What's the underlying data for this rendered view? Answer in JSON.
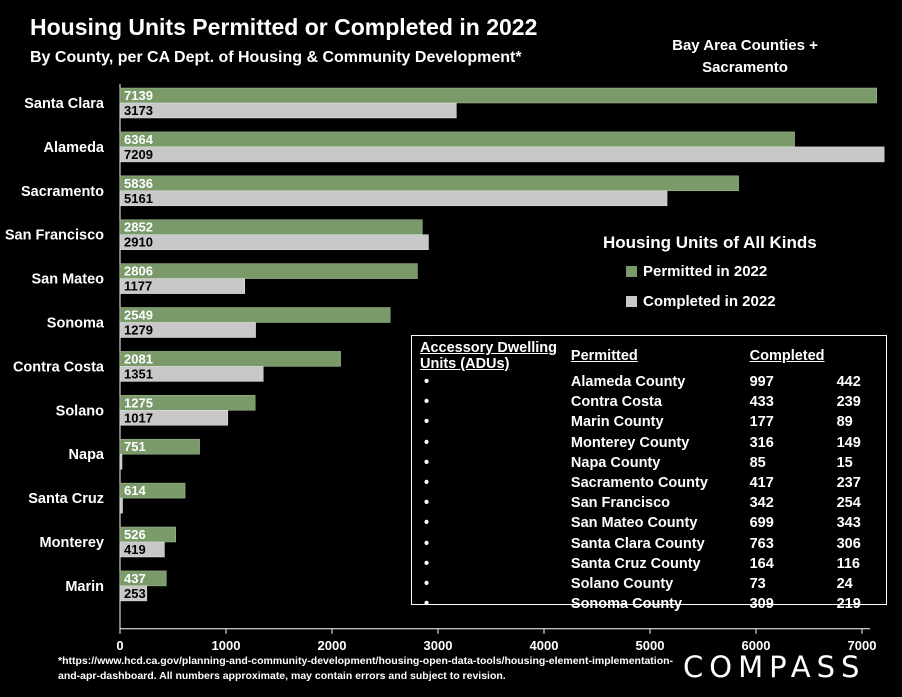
{
  "header": {
    "title": "Housing Units Permitted or Completed in 2022",
    "subtitle": "By County, per CA Dept. of Housing & Community Development*",
    "region": "Bay Area Counties + Sacramento"
  },
  "legend": {
    "title": "Housing Units of All Kinds",
    "items": [
      {
        "label": "Permitted in 2022",
        "color": "#7a9a6a"
      },
      {
        "label": "Completed in 2022",
        "color": "#c8c8c8"
      }
    ]
  },
  "chart_data": {
    "type": "bar",
    "orientation": "horizontal",
    "title": "Housing Units Permitted or Completed in 2022",
    "categories": [
      "Santa Clara",
      "Alameda",
      "Sacramento",
      "San Francisco",
      "San Mateo",
      "Sonoma",
      "Contra Costa",
      "Solano",
      "Napa",
      "Santa Cruz",
      "Monterey",
      "Marin"
    ],
    "series": [
      {
        "name": "Permitted in 2022",
        "color": "#7a9a6a",
        "values": [
          7139,
          6364,
          5836,
          2852,
          2806,
          2549,
          2081,
          1275,
          751,
          614,
          526,
          437
        ]
      },
      {
        "name": "Completed in 2022",
        "color": "#c8c8c8",
        "values": [
          3173,
          7209,
          5161,
          2910,
          1177,
          1279,
          1351,
          1017,
          null,
          24,
          419,
          253
        ]
      }
    ],
    "xlim": [
      0,
      7000
    ],
    "xticks": [
      "0",
      "1000",
      "2000",
      "3000",
      "4000",
      "5000",
      "6000",
      "7000"
    ],
    "grid": false,
    "legend_position": "right"
  },
  "adu_table": {
    "headers": [
      "Accessory Dwelling Units (ADUs)",
      "Permitted",
      "Completed"
    ],
    "bullet": "•",
    "rows": [
      {
        "name": "Alameda County",
        "permitted": "997",
        "completed": "442"
      },
      {
        "name": "Contra Costa",
        "permitted": "433",
        "completed": "239"
      },
      {
        "name": "Marin County",
        "permitted": "177",
        "completed": "89"
      },
      {
        "name": "Monterey County",
        "permitted": "316",
        "completed": "149"
      },
      {
        "name": "Napa County",
        "permitted": "85",
        "completed": "15"
      },
      {
        "name": "Sacramento County",
        "permitted": "417",
        "completed": "237"
      },
      {
        "name": "San Francisco",
        "permitted": "342",
        "completed": "254"
      },
      {
        "name": "San Mateo County",
        "permitted": "699",
        "completed": "343"
      },
      {
        "name": "Santa Clara County",
        "permitted": "763",
        "completed": "306"
      },
      {
        "name": "Santa Cruz County",
        "permitted": "164",
        "completed": "116"
      },
      {
        "name": "Solano County",
        "permitted": "73",
        "completed": "24"
      },
      {
        "name": "Sonoma County",
        "permitted": "309",
        "completed": "219"
      }
    ]
  },
  "footnote": "*https://www.hcd.ca.gov/planning-and-community-development/housing-open-data-tools/housing-element-implementation-and-apr-dashboard. All numbers approximate, may contain errors and subject to revision.",
  "logo": "COMPASS"
}
